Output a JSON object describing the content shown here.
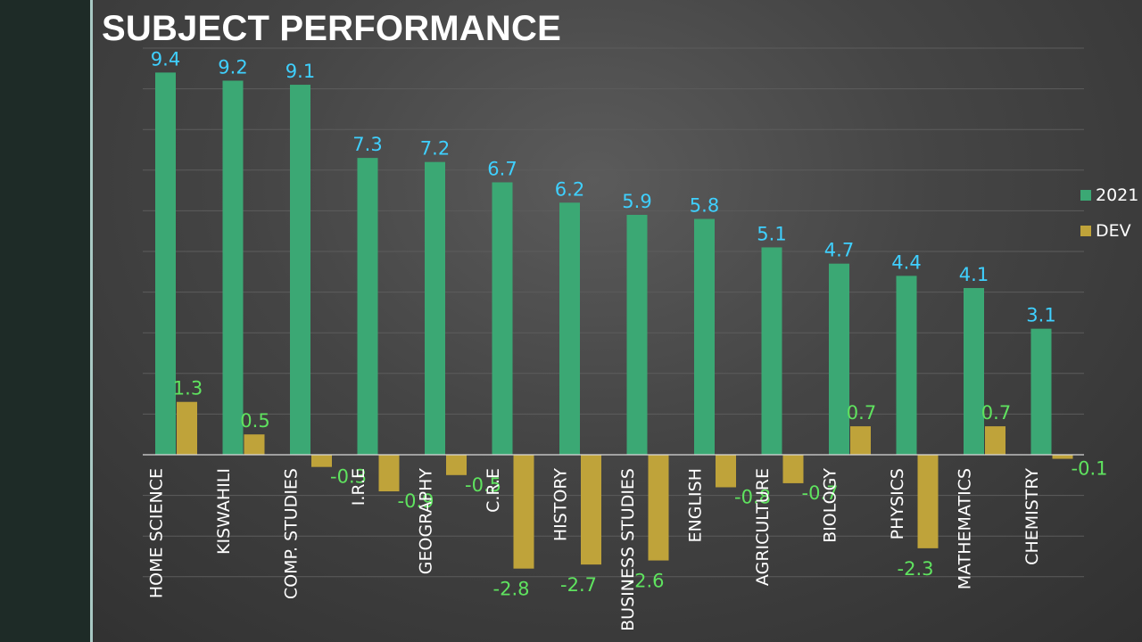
{
  "title": "SUBJECT PERFORMANCE",
  "colors": {
    "series_2021": "#3ba874",
    "series_dev": "#bfa33a",
    "label_2021": "#3fd0ff",
    "label_dev": "#5fe35f",
    "grid": "#5c5c5c",
    "axis": "#d9d9d9"
  },
  "chart_data": {
    "type": "bar",
    "title": "SUBJECT PERFORMANCE",
    "xlabel": "",
    "ylabel": "",
    "ylim": [
      -3.0,
      10.0
    ],
    "grid": true,
    "legend_position": "right",
    "categories": [
      "HOME SCIENCE",
      "KISWAHILI",
      "COMP. STUDIES",
      "I.R.E",
      "GEOGRAPHY",
      "C.R.E",
      "HISTORY",
      "BUSINESS STUDIES",
      "ENGLISH",
      "AGRICULTURE",
      "BIOLOGY",
      "PHYSICS",
      "MATHEMATICS",
      "CHEMISTRY"
    ],
    "series": [
      {
        "name": "2021",
        "values": [
          9.4,
          9.2,
          9.1,
          7.3,
          7.2,
          6.7,
          6.2,
          5.9,
          5.8,
          5.1,
          4.7,
          4.4,
          4.1,
          3.1
        ],
        "labels": [
          "9.4",
          "9.2",
          "9.1",
          "7.3",
          "7.2",
          "6.7",
          "6.2",
          "5.9",
          "5.8",
          "5.1",
          "4.7",
          "4.4",
          "4.1",
          "3.1"
        ]
      },
      {
        "name": "DEV",
        "values": [
          1.3,
          0.5,
          -0.3,
          -0.9,
          -0.5,
          -2.8,
          -2.7,
          -2.6,
          -0.8,
          -0.7,
          0.7,
          -2.3,
          0.7,
          -0.1
        ],
        "labels": [
          "1.3",
          "0.5",
          "-0.3",
          "-0.9",
          "-0.5",
          "-2.8",
          "-2.7",
          "-2.6",
          "-0.8",
          "-0.7",
          "0.7",
          "-2.3",
          "0.7",
          "-0.1"
        ]
      }
    ]
  }
}
